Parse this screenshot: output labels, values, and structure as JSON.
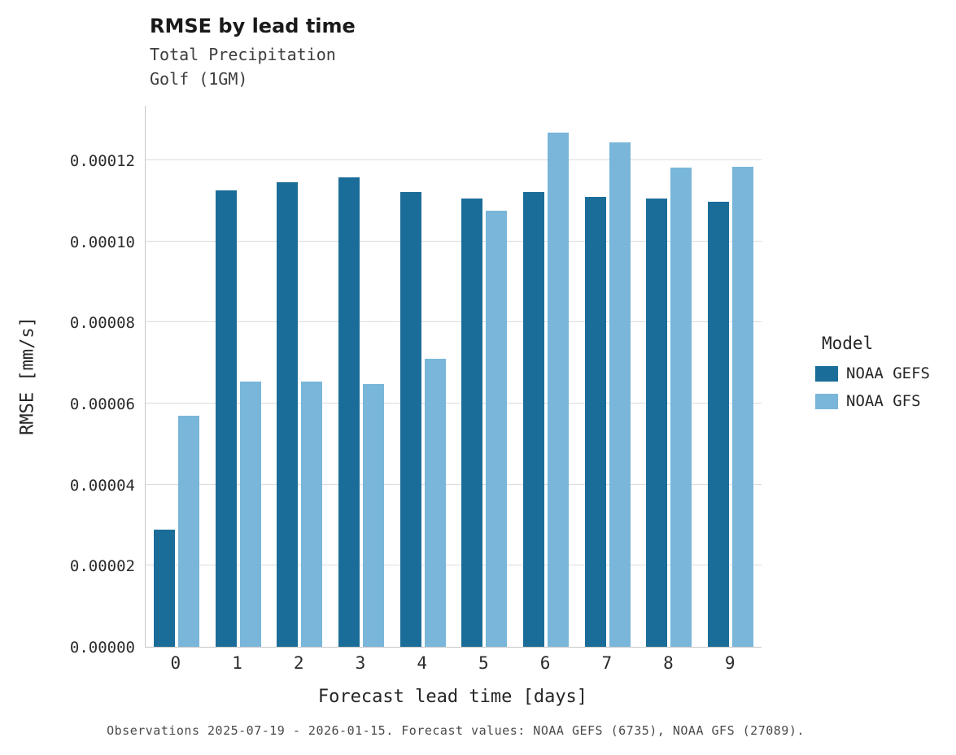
{
  "title": "RMSE by lead time",
  "subtitle": "Total Precipitation\nGolf (1GM)",
  "caption": "Observations 2025-07-19 - 2026-01-15. Forecast values: NOAA GEFS (6735), NOAA GFS (27089).",
  "legend": {
    "title": "Model",
    "entries": [
      {
        "label": "NOAA GEFS",
        "color": "#1b6d99"
      },
      {
        "label": "NOAA GFS",
        "color": "#79b6da"
      }
    ]
  },
  "chart_data": {
    "type": "bar",
    "title": "RMSE by lead time",
    "subtitle": [
      "Total Precipitation",
      "Golf (1GM)"
    ],
    "xlabel": "Forecast lead time [days]",
    "ylabel": "RMSE [mm/s]",
    "categories": [
      "0",
      "1",
      "2",
      "3",
      "4",
      "5",
      "6",
      "7",
      "8",
      "9"
    ],
    "series": [
      {
        "name": "NOAA GEFS",
        "color": "#1b6d99",
        "values": [
          2.9e-05,
          0.0001125,
          0.0001146,
          0.0001158,
          0.0001121,
          0.0001106,
          0.0001122,
          0.0001109,
          0.0001105,
          0.0001098
        ]
      },
      {
        "name": "NOAA GFS",
        "color": "#79b6da",
        "values": [
          5.7e-05,
          6.55e-05,
          6.55e-05,
          6.48e-05,
          7.1e-05,
          0.0001075,
          0.0001268,
          0.0001245,
          0.0001183,
          0.0001185
        ]
      }
    ],
    "ylim": [
      0,
      0.00013345
    ],
    "yticks": [
      0,
      2e-05,
      4e-05,
      6e-05,
      8e-05,
      0.0001,
      0.00012
    ],
    "ytick_labels": [
      "0.00000",
      "0.00002",
      "0.00004",
      "0.00006",
      "0.00008",
      "0.00010",
      "0.00012"
    ],
    "grid": true,
    "legend_position": "right"
  }
}
